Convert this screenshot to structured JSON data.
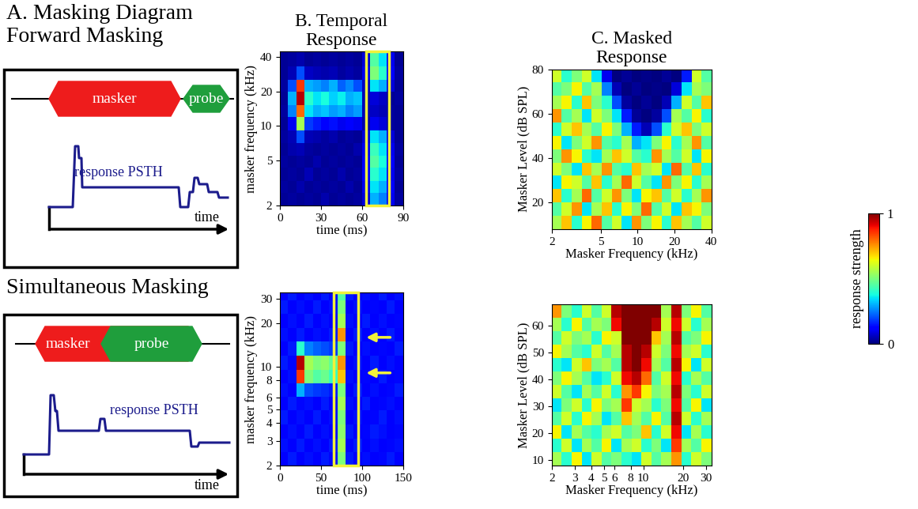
{
  "panel_a": {
    "title": "A. Masking Diagram\nForward Masking",
    "diagrams": [
      {
        "masker": "masker",
        "probe": "probe",
        "trace": "response PSTH",
        "axis": "time"
      },
      {
        "title": "Simultaneous Masking",
        "masker": "masker",
        "probe": "probe",
        "trace": "response PSTH",
        "axis": "time"
      }
    ]
  },
  "chart_data": [
    {
      "type": "heatmap",
      "title": "B. Temporal\nResponse",
      "x_label": "time (ms)",
      "y_label": "masker frequency (kHz)",
      "log": "y",
      "xlim": [
        0,
        90
      ],
      "ylim": [
        2,
        45
      ],
      "xticks": [
        0,
        30,
        60,
        90
      ],
      "yticks": [
        2,
        5,
        10,
        20,
        40
      ],
      "highlight": [
        63,
        80
      ],
      "x_edges": [
        0,
        6,
        12,
        18,
        24,
        30,
        36,
        42,
        48,
        54,
        60,
        66,
        72,
        78,
        84,
        90
      ],
      "y_edges": [
        2,
        2.6,
        3.3,
        4.3,
        5.5,
        7.1,
        9.2,
        11.9,
        15.3,
        19.8,
        25.5,
        33,
        45
      ],
      "cells": [
        [
          0.02,
          0.03,
          0.02,
          0.03,
          0.02,
          0.04,
          0.02,
          0.03,
          0.02,
          0.03,
          0.08,
          0.3,
          0.25,
          0.1,
          0.03
        ],
        [
          0.03,
          0.02,
          0.04,
          0.02,
          0.03,
          0.02,
          0.03,
          0.02,
          0.04,
          0.02,
          0.1,
          0.35,
          0.3,
          0.12,
          0.02
        ],
        [
          0.02,
          0.03,
          0.02,
          0.05,
          0.02,
          0.03,
          0.02,
          0.04,
          0.02,
          0.03,
          0.12,
          0.4,
          0.35,
          0.1,
          0.03
        ],
        [
          0.03,
          0.02,
          0.03,
          0.02,
          0.04,
          0.02,
          0.03,
          0.02,
          0.03,
          0.02,
          0.12,
          0.45,
          0.38,
          0.12,
          0.02
        ],
        [
          0.02,
          0.04,
          0.05,
          0.03,
          0.02,
          0.03,
          0.02,
          0.03,
          0.02,
          0.04,
          0.1,
          0.42,
          0.35,
          0.1,
          0.03
        ],
        [
          0.03,
          0.05,
          0.2,
          0.05,
          0.04,
          0.03,
          0.04,
          0.02,
          0.03,
          0.02,
          0.08,
          0.35,
          0.3,
          0.08,
          0.02
        ],
        [
          0.02,
          0.1,
          0.55,
          0.18,
          0.15,
          0.12,
          0.14,
          0.1,
          0.12,
          0.1,
          0.04,
          0.1,
          0.08,
          0.03,
          0.02
        ],
        [
          0.03,
          0.25,
          0.8,
          0.35,
          0.3,
          0.32,
          0.28,
          0.3,
          0.25,
          0.28,
          0.05,
          0.06,
          0.05,
          0.03,
          0.02
        ],
        [
          0.02,
          0.3,
          0.95,
          0.4,
          0.35,
          0.38,
          0.33,
          0.36,
          0.3,
          0.32,
          0.05,
          0.08,
          0.06,
          0.02,
          0.03
        ],
        [
          0.03,
          0.2,
          0.85,
          0.3,
          0.28,
          0.25,
          0.3,
          0.22,
          0.26,
          0.2,
          0.06,
          0.35,
          0.3,
          0.08,
          0.02
        ],
        [
          0.02,
          0.05,
          0.2,
          0.06,
          0.05,
          0.04,
          0.05,
          0.03,
          0.04,
          0.03,
          0.1,
          0.5,
          0.4,
          0.12,
          0.03
        ],
        [
          0.02,
          0.03,
          0.04,
          0.02,
          0.03,
          0.02,
          0.03,
          0.02,
          0.03,
          0.02,
          0.08,
          0.45,
          0.35,
          0.1,
          0.02
        ]
      ]
    },
    {
      "type": "heatmap",
      "x_label": "time (ms)",
      "y_label": "masker frequency (kHz)",
      "log": "y",
      "xlim": [
        0,
        150
      ],
      "ylim": [
        2,
        33
      ],
      "xticks": [
        0,
        50,
        100,
        150
      ],
      "yticks": [
        2,
        3,
        4,
        5,
        6,
        8,
        10,
        20,
        30
      ],
      "highlight": [
        65,
        95
      ],
      "arrows": [
        16,
        9
      ],
      "x_edges": [
        0,
        10,
        20,
        30,
        40,
        50,
        60,
        70,
        80,
        90,
        100,
        110,
        120,
        130,
        140,
        150
      ],
      "y_edges": [
        2,
        2.5,
        3.1,
        3.9,
        4.9,
        6.1,
        7.6,
        9.5,
        11.9,
        14.9,
        18.6,
        23.3,
        29.1,
        33
      ],
      "cells": [
        [
          0.12,
          0.15,
          0.12,
          0.14,
          0.12,
          0.15,
          0.13,
          0.5,
          0.15,
          0.12,
          0.14,
          0.12,
          0.13,
          0.15,
          0.12
        ],
        [
          0.14,
          0.12,
          0.15,
          0.12,
          0.14,
          0.12,
          0.15,
          0.55,
          0.13,
          0.15,
          0.12,
          0.14,
          0.12,
          0.13,
          0.14
        ],
        [
          0.12,
          0.14,
          0.12,
          0.15,
          0.12,
          0.14,
          0.12,
          0.52,
          0.15,
          0.12,
          0.13,
          0.15,
          0.14,
          0.12,
          0.13
        ],
        [
          0.15,
          0.12,
          0.14,
          0.12,
          0.15,
          0.12,
          0.14,
          0.5,
          0.12,
          0.14,
          0.12,
          0.13,
          0.15,
          0.12,
          0.14
        ],
        [
          0.12,
          0.15,
          0.13,
          0.14,
          0.12,
          0.15,
          0.12,
          0.55,
          0.14,
          0.12,
          0.15,
          0.12,
          0.13,
          0.14,
          0.12
        ],
        [
          0.14,
          0.12,
          0.3,
          0.2,
          0.18,
          0.17,
          0.15,
          0.5,
          0.12,
          0.15,
          0.12,
          0.14,
          0.12,
          0.13,
          0.15
        ],
        [
          0.12,
          0.14,
          0.85,
          0.5,
          0.45,
          0.48,
          0.42,
          0.7,
          0.14,
          0.12,
          0.13,
          0.12,
          0.15,
          0.12,
          0.13
        ],
        [
          0.15,
          0.13,
          0.95,
          0.55,
          0.5,
          0.52,
          0.47,
          0.75,
          0.12,
          0.14,
          0.12,
          0.15,
          0.12,
          0.14,
          0.12
        ],
        [
          0.12,
          0.15,
          0.4,
          0.25,
          0.22,
          0.2,
          0.18,
          0.5,
          0.15,
          0.12,
          0.14,
          0.12,
          0.13,
          0.12,
          0.15
        ],
        [
          0.14,
          0.12,
          0.15,
          0.12,
          0.14,
          0.13,
          0.15,
          0.75,
          0.12,
          0.15,
          0.12,
          0.14,
          0.12,
          0.15,
          0.12
        ],
        [
          0.12,
          0.14,
          0.12,
          0.15,
          0.12,
          0.14,
          0.12,
          0.55,
          0.14,
          0.12,
          0.15,
          0.12,
          0.14,
          0.12,
          0.13
        ],
        [
          0.15,
          0.12,
          0.14,
          0.12,
          0.15,
          0.12,
          0.14,
          0.5,
          0.12,
          0.14,
          0.12,
          0.13,
          0.12,
          0.15,
          0.12
        ],
        [
          0.12,
          0.15,
          0.12,
          0.14,
          0.12,
          0.15,
          0.12,
          0.45,
          0.15,
          0.12,
          0.14,
          0.12,
          0.15,
          0.12,
          0.14
        ]
      ]
    },
    {
      "type": "heatmap",
      "title": "C. Masked\nResponse",
      "x_label": "Masker Frequency (kHz)",
      "y_label": "Masker Level (dB SPL)",
      "log": "x",
      "xlim": [
        2,
        40
      ],
      "ylim": [
        8,
        80
      ],
      "xticks": [
        2,
        5,
        10,
        20,
        40
      ],
      "yticks": [
        20,
        40,
        60,
        80
      ],
      "x_edges": [
        2,
        2.41,
        2.91,
        3.51,
        4.23,
        5.1,
        6.15,
        7.42,
        8.94,
        10.8,
        13,
        15.7,
        18.9,
        22.8,
        27.5,
        33.2,
        40
      ],
      "y_edges": [
        8,
        14,
        20,
        26,
        32,
        38,
        44,
        50,
        56,
        62,
        68,
        74,
        80
      ],
      "cells": [
        [
          0.55,
          0.7,
          0.4,
          0.65,
          0.8,
          0.45,
          0.6,
          0.35,
          0.75,
          0.5,
          0.65,
          0.4,
          0.7,
          0.55,
          0.45,
          0.6
        ],
        [
          0.45,
          0.6,
          0.75,
          0.35,
          0.55,
          0.7,
          0.4,
          0.65,
          0.5,
          0.8,
          0.45,
          0.6,
          0.35,
          0.7,
          0.65,
          0.5
        ],
        [
          0.7,
          0.4,
          0.55,
          0.8,
          0.45,
          0.6,
          0.75,
          0.5,
          0.35,
          0.65,
          0.7,
          0.45,
          0.6,
          0.4,
          0.55,
          0.75
        ],
        [
          0.35,
          0.65,
          0.6,
          0.45,
          0.7,
          0.4,
          0.55,
          0.8,
          0.6,
          0.45,
          0.35,
          0.75,
          0.5,
          0.65,
          0.4,
          0.55
        ],
        [
          0.6,
          0.5,
          0.35,
          0.7,
          0.55,
          0.75,
          0.45,
          0.4,
          0.7,
          0.55,
          0.6,
          0.35,
          0.8,
          0.45,
          0.7,
          0.4
        ],
        [
          0.5,
          0.75,
          0.65,
          0.4,
          0.35,
          0.55,
          0.7,
          0.6,
          0.45,
          0.4,
          0.75,
          0.55,
          0.45,
          0.6,
          0.35,
          0.65
        ],
        [
          0.65,
          0.35,
          0.5,
          0.6,
          0.75,
          0.45,
          0.4,
          0.55,
          0.3,
          0.35,
          0.5,
          0.65,
          0.4,
          0.55,
          0.75,
          0.45
        ],
        [
          0.4,
          0.6,
          0.7,
          0.55,
          0.45,
          0.65,
          0.5,
          0.3,
          0.15,
          0.05,
          0.2,
          0.4,
          0.6,
          0.7,
          0.5,
          0.6
        ],
        [
          0.75,
          0.45,
          0.55,
          0.35,
          0.6,
          0.5,
          0.35,
          0.15,
          0.02,
          0.0,
          0.03,
          0.2,
          0.55,
          0.45,
          0.65,
          0.4
        ],
        [
          0.55,
          0.65,
          0.4,
          0.7,
          0.5,
          0.4,
          0.2,
          0.03,
          0.0,
          0.02,
          0.0,
          0.05,
          0.3,
          0.6,
          0.45,
          0.7
        ],
        [
          0.45,
          0.5,
          0.65,
          0.45,
          0.55,
          0.25,
          0.05,
          0.0,
          0.02,
          0.0,
          0.01,
          0.0,
          0.08,
          0.35,
          0.55,
          0.5
        ],
        [
          0.6,
          0.4,
          0.5,
          0.6,
          0.35,
          0.1,
          0.0,
          0.02,
          0.0,
          0.01,
          0.0,
          0.02,
          0.0,
          0.15,
          0.6,
          0.45
        ]
      ]
    },
    {
      "type": "heatmap",
      "x_label": "Masker Frequency (kHz)",
      "y_label": "Masker Level (dB SPL)",
      "log": "x",
      "xlim": [
        2,
        33
      ],
      "ylim": [
        8,
        68
      ],
      "xticks": [
        2,
        3,
        4,
        5,
        6,
        8,
        10,
        20,
        30
      ],
      "yticks": [
        10,
        20,
        30,
        40,
        50,
        60
      ],
      "x_edges": [
        2,
        2.38,
        2.84,
        3.38,
        4.03,
        4.8,
        5.71,
        6.81,
        8.11,
        9.66,
        11.5,
        13.7,
        16.3,
        19.5,
        23.2,
        27.6,
        33
      ],
      "y_edges": [
        8,
        13,
        18,
        23,
        28,
        33,
        38,
        43,
        48,
        53,
        58,
        63,
        68
      ],
      "cells": [
        [
          0.55,
          0.4,
          0.65,
          0.35,
          0.6,
          0.45,
          0.5,
          0.4,
          0.35,
          0.6,
          0.45,
          0.55,
          0.75,
          0.4,
          0.6,
          0.5
        ],
        [
          0.4,
          0.6,
          0.35,
          0.55,
          0.45,
          0.65,
          0.35,
          0.55,
          0.6,
          0.4,
          0.5,
          0.35,
          0.85,
          0.55,
          0.45,
          0.65
        ],
        [
          0.65,
          0.35,
          0.55,
          0.45,
          0.4,
          0.55,
          0.6,
          0.45,
          0.5,
          0.7,
          0.4,
          0.6,
          0.9,
          0.35,
          0.55,
          0.4
        ],
        [
          0.45,
          0.6,
          0.4,
          0.65,
          0.55,
          0.35,
          0.45,
          0.7,
          0.55,
          0.45,
          0.65,
          0.45,
          0.95,
          0.6,
          0.4,
          0.55
        ],
        [
          0.35,
          0.5,
          0.6,
          0.4,
          0.65,
          0.5,
          0.55,
          0.85,
          0.6,
          0.55,
          0.4,
          0.5,
          0.9,
          0.45,
          0.65,
          0.35
        ],
        [
          0.6,
          0.45,
          0.35,
          0.55,
          0.45,
          0.6,
          0.4,
          0.75,
          0.85,
          0.65,
          0.5,
          0.55,
          0.95,
          0.5,
          0.4,
          0.6
        ],
        [
          0.5,
          0.65,
          0.55,
          0.45,
          0.35,
          0.4,
          0.6,
          0.9,
          0.95,
          0.8,
          0.45,
          0.6,
          0.9,
          0.4,
          0.55,
          0.45
        ],
        [
          0.4,
          0.35,
          0.6,
          0.7,
          0.5,
          0.55,
          0.45,
          0.95,
          1.0,
          0.9,
          0.55,
          0.45,
          0.95,
          0.65,
          0.35,
          0.6
        ],
        [
          0.65,
          0.55,
          0.45,
          0.4,
          0.6,
          0.45,
          0.55,
          0.95,
          1.0,
          0.95,
          0.6,
          0.5,
          0.9,
          0.55,
          0.6,
          0.4
        ],
        [
          0.45,
          0.6,
          0.5,
          0.55,
          0.4,
          0.65,
          0.6,
          1.0,
          1.0,
          1.0,
          0.7,
          0.55,
          0.95,
          0.45,
          0.5,
          0.65
        ],
        [
          0.55,
          0.4,
          0.65,
          0.45,
          0.55,
          0.5,
          0.9,
          1.0,
          1.0,
          1.0,
          0.95,
          0.6,
          0.9,
          0.6,
          0.4,
          0.55
        ],
        [
          0.75,
          0.5,
          0.4,
          0.6,
          0.45,
          0.6,
          0.95,
          1.0,
          1.0,
          1.0,
          1.0,
          0.55,
          0.95,
          0.5,
          0.65,
          0.45
        ]
      ]
    }
  ],
  "colorbar": {
    "label": "response strength",
    "range": [
      0,
      1
    ],
    "ticks": [
      0,
      1
    ]
  }
}
